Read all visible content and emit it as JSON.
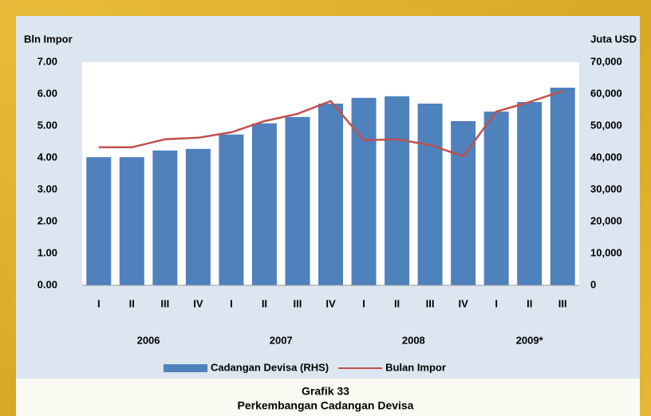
{
  "chart_data": {
    "type": "bar",
    "y_label": "Bln Impor",
    "y2_label": "Juta USD",
    "caption": [
      "Grafik 33",
      "Perkembangan Cadangan Devisa"
    ],
    "categories": [
      "I",
      "II",
      "III",
      "IV",
      "I",
      "II",
      "III",
      "IV",
      "I",
      "II",
      "III",
      "IV",
      "I",
      "II",
      "III"
    ],
    "groups": [
      {
        "label": "2006",
        "count": 4
      },
      {
        "label": "2007",
        "count": 4
      },
      {
        "label": "2008",
        "count": 4
      },
      {
        "label": "2009*",
        "count": 3
      }
    ],
    "series": [
      {
        "name": "Cadangan Devisa (RHS)",
        "type": "bar",
        "axis": "y2",
        "color": "#4f81bd",
        "values": [
          40200,
          40200,
          42300,
          42800,
          47300,
          50800,
          52800,
          57000,
          58800,
          59300,
          57000,
          51500,
          54500,
          57500,
          62000
        ]
      },
      {
        "name": "Bulan Impor",
        "type": "line",
        "color": "#c0504d",
        "values": [
          4.33,
          4.33,
          4.58,
          4.63,
          4.8,
          5.15,
          5.38,
          5.78,
          4.55,
          4.58,
          4.4,
          4.05,
          5.45,
          5.75,
          6.1
        ]
      }
    ],
    "ylim": [
      0,
      7
    ],
    "yticks": [
      {
        "value": 0,
        "label": "0.00"
      },
      {
        "value": 1,
        "label": "1.00"
      },
      {
        "value": 2,
        "label": "2.00"
      },
      {
        "value": 3,
        "label": "3.00"
      },
      {
        "value": 4,
        "label": "4.00"
      },
      {
        "value": 5,
        "label": "5.00"
      },
      {
        "value": 6,
        "label": "6.00"
      },
      {
        "value": 7,
        "label": "7.00"
      }
    ],
    "y2lim": [
      0,
      70000
    ],
    "y2ticks": [
      0,
      {
        "value": 10000,
        "label": "10,000"
      },
      {
        "value": 20000,
        "label": "20,000"
      },
      {
        "value": 30000,
        "label": "30,000"
      },
      {
        "value": 40000,
        "label": "40,000"
      },
      {
        "value": 50000,
        "label": "50,000"
      },
      {
        "value": 60000,
        "label": "60,000"
      },
      {
        "value": 70000,
        "label": "70,000"
      }
    ],
    "grid": false
  }
}
